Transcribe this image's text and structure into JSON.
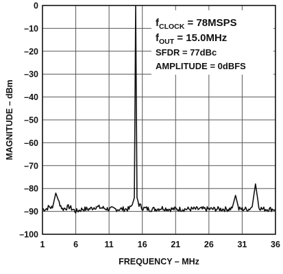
{
  "chart_data": {
    "type": "line",
    "title": "",
    "xlabel": "FREQUENCY – MHz",
    "ylabel": "MAGNITUDE – dBm",
    "xlim": [
      1,
      36
    ],
    "ylim": [
      -100,
      0
    ],
    "x_ticks": [
      "1",
      "6",
      "11",
      "16",
      "21",
      "26",
      "31",
      "36"
    ],
    "y_ticks": [
      "0",
      "–10",
      "–20",
      "–30",
      "–40",
      "–50",
      "–60",
      "–70",
      "–80",
      "–90",
      "–100"
    ],
    "grid": true,
    "series": [
      {
        "x": [
          1,
          1.5,
          2,
          2.5,
          3,
          3.5,
          4,
          5,
          6,
          7,
          8,
          9,
          10,
          11,
          12,
          13,
          14,
          14.5,
          14.8,
          15,
          15.2,
          15.5,
          16,
          17,
          18,
          19,
          20,
          21,
          22,
          23,
          24,
          25,
          26,
          27,
          28,
          29,
          29.5,
          30,
          30.5,
          31,
          32,
          32.5,
          33,
          33.5,
          34,
          35,
          36
        ],
        "y": [
          -89,
          -89,
          -88,
          -88.5,
          -82,
          -86,
          -89,
          -88,
          -90,
          -89,
          -89,
          -88,
          -88.5,
          -89,
          -89,
          -89,
          -89,
          -87,
          -84,
          0,
          -84,
          -87,
          -88.5,
          -89,
          -89,
          -88.5,
          -89,
          -89,
          -89,
          -89,
          -89,
          -89,
          -89,
          -89,
          -89,
          -89,
          -88.5,
          -83,
          -89,
          -89,
          -89,
          -88,
          -78,
          -88,
          -89,
          -89,
          -89
        ]
      }
    ],
    "annotations": [
      {
        "base": "f",
        "sub": "CLOCK",
        "text": " = 78MSPS"
      },
      {
        "base": "f",
        "sub": "OUT",
        "text": " = 15.0MHz"
      },
      {
        "base": "SFDR = 77dBc",
        "sub": "",
        "text": ""
      },
      {
        "base": "AMPLITUDE = 0dBFS",
        "sub": "",
        "text": ""
      }
    ]
  }
}
